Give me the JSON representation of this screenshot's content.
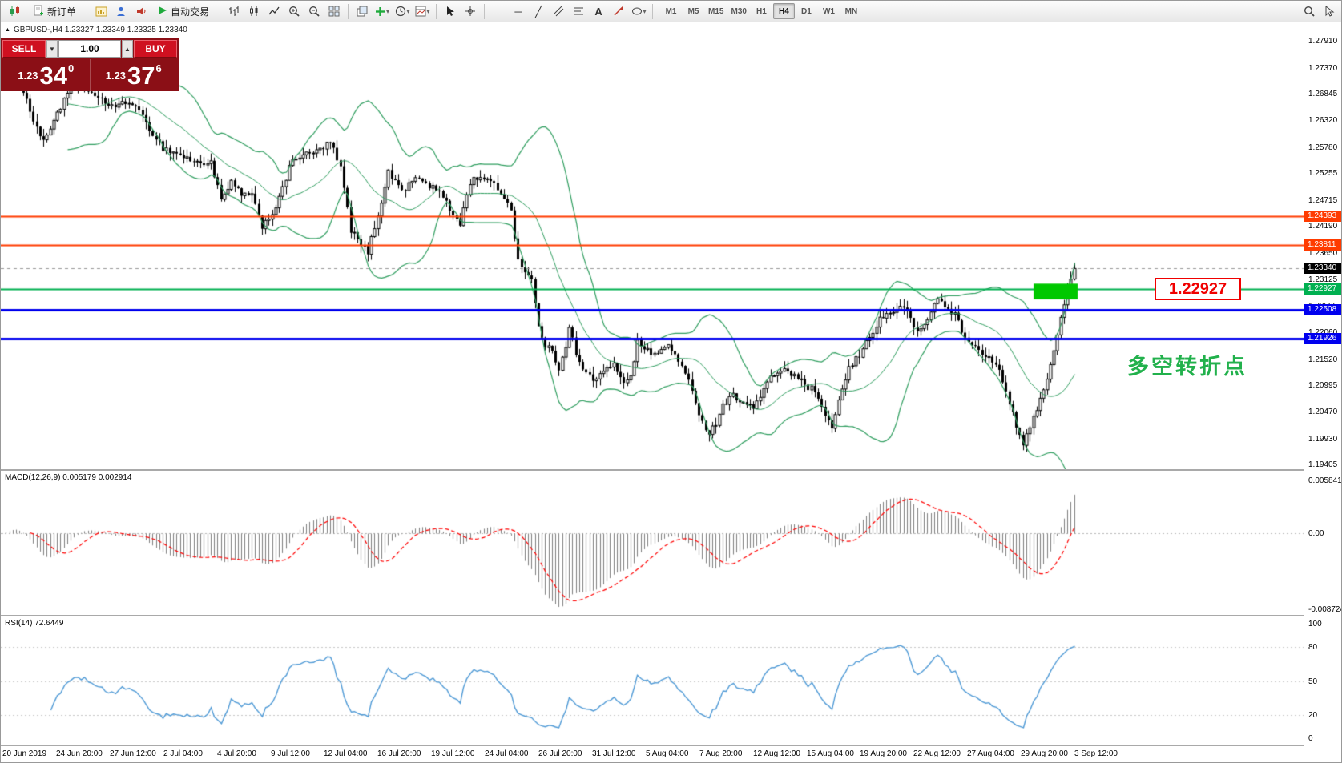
{
  "toolbar": {
    "new_order_label": "新订单",
    "autotrading_label": "自动交易",
    "timeframes": [
      "M1",
      "M5",
      "M15",
      "M30",
      "H1",
      "H4",
      "D1",
      "W1",
      "MN"
    ],
    "active_timeframe": "H4"
  },
  "chart": {
    "header": "GBPUSD-,H4  1.23327 1.23349 1.23325 1.23340",
    "trade_panel": {
      "sell_label": "SELL",
      "buy_label": "BUY",
      "volume": "1.00",
      "sell_price_small": "1.23",
      "sell_price_big": "34",
      "sell_price_sup": "0",
      "buy_price_small": "1.23",
      "buy_price_big": "37",
      "buy_price_sup": "6"
    },
    "price_ticks": [
      "1.27910",
      "1.27370",
      "1.26845",
      "1.26320",
      "1.25780",
      "1.25255",
      "1.24715",
      "1.24190",
      "1.23650",
      "1.23125",
      "1.22585",
      "1.22060",
      "1.21520",
      "1.20995",
      "1.20470",
      "1.19930",
      "1.19405"
    ],
    "levels": [
      {
        "price": 1.24393,
        "label": "1.24393",
        "color": "#ff3b00",
        "width": 2
      },
      {
        "price": 1.23811,
        "label": "1.23811",
        "color": "#ff3b00",
        "width": 2
      },
      {
        "price": 1.22927,
        "label": "1.22927",
        "color": "#00b050",
        "width": 2
      },
      {
        "price": 1.22508,
        "label": "1.22508",
        "color": "#0000ee",
        "width": 3
      },
      {
        "price": 1.21926,
        "label": "1.21926",
        "color": "#0000ee",
        "width": 3
      }
    ],
    "current_price": {
      "label": "1.23340",
      "price": 1.2334
    },
    "annotations": {
      "level_label": "1.22927",
      "cn_note": "多空转折点",
      "green_box": {
        "bar_start": 302,
        "bar_end": 315,
        "price_top": 1.23035,
        "price_bottom": 1.2272,
        "color": "#00c800"
      }
    },
    "bars": 315,
    "last_close": 1.2334,
    "bollinger": {
      "period": 20,
      "dev": 2,
      "color": "#2f9e5f"
    },
    "price_path": [
      [
        0,
        1.2715
      ],
      [
        4,
        1.2732
      ],
      [
        8,
        1.265
      ],
      [
        12,
        1.2586
      ],
      [
        16,
        1.2648
      ],
      [
        20,
        1.2692
      ],
      [
        24,
        1.27
      ],
      [
        28,
        1.2672
      ],
      [
        33,
        1.266
      ],
      [
        38,
        1.2668
      ],
      [
        42,
        1.2625
      ],
      [
        47,
        1.2576
      ],
      [
        52,
        1.2562
      ],
      [
        57,
        1.2545
      ],
      [
        61,
        1.2548
      ],
      [
        64,
        1.247
      ],
      [
        67,
        1.2505
      ],
      [
        70,
        1.2484
      ],
      [
        73,
        1.2478
      ],
      [
        76,
        1.242
      ],
      [
        79,
        1.2445
      ],
      [
        82,
        1.2492
      ],
      [
        85,
        1.2556
      ],
      [
        89,
        1.2562
      ],
      [
        93,
        1.2572
      ],
      [
        96,
        1.2588
      ],
      [
        99,
        1.2535
      ],
      [
        102,
        1.2412
      ],
      [
        105,
        1.238
      ],
      [
        107,
        1.2368
      ],
      [
        110,
        1.2442
      ],
      [
        113,
        1.2528
      ],
      [
        115,
        1.2508
      ],
      [
        118,
        1.2492
      ],
      [
        121,
        1.2518
      ],
      [
        125,
        1.25
      ],
      [
        128,
        1.2488
      ],
      [
        131,
        1.2452
      ],
      [
        134,
        1.2425
      ],
      [
        137,
        1.2508
      ],
      [
        140,
        1.252
      ],
      [
        143,
        1.2506
      ],
      [
        146,
        1.2488
      ],
      [
        149,
        1.2452
      ],
      [
        151,
        1.235
      ],
      [
        153,
        1.233
      ],
      [
        155,
        1.231
      ],
      [
        157,
        1.2215
      ],
      [
        159,
        1.218
      ],
      [
        161,
        1.2165
      ],
      [
        163,
        1.2135
      ],
      [
        165,
        1.218
      ],
      [
        166,
        1.2222
      ],
      [
        168,
        1.216
      ],
      [
        170,
        1.213
      ],
      [
        173,
        1.2112
      ],
      [
        176,
        1.2125
      ],
      [
        179,
        1.214
      ],
      [
        182,
        1.2108
      ],
      [
        184,
        1.212
      ],
      [
        186,
        1.2185
      ],
      [
        189,
        1.2168
      ],
      [
        192,
        1.2162
      ],
      [
        195,
        1.218
      ],
      [
        198,
        1.2152
      ],
      [
        201,
        1.2105
      ],
      [
        203,
        1.2062
      ],
      [
        205,
        1.203
      ],
      [
        207,
        1.2002
      ],
      [
        209,
        1.2025
      ],
      [
        211,
        1.2062
      ],
      [
        214,
        1.2078
      ],
      [
        217,
        1.2068
      ],
      [
        220,
        1.2052
      ],
      [
        223,
        1.2092
      ],
      [
        226,
        1.2122
      ],
      [
        229,
        1.2132
      ],
      [
        232,
        1.2118
      ],
      [
        235,
        1.21
      ],
      [
        238,
        1.2088
      ],
      [
        241,
        1.2032
      ],
      [
        243,
        1.2018
      ],
      [
        245,
        1.2068
      ],
      [
        248,
        1.2132
      ],
      [
        251,
        1.216
      ],
      [
        254,
        1.2198
      ],
      [
        257,
        1.2232
      ],
      [
        260,
        1.2245
      ],
      [
        263,
        1.2258
      ],
      [
        266,
        1.2238
      ],
      [
        268,
        1.2202
      ],
      [
        270,
        1.2218
      ],
      [
        272,
        1.2248
      ],
      [
        274,
        1.2275
      ],
      [
        276,
        1.2258
      ],
      [
        279,
        1.2242
      ],
      [
        282,
        1.2192
      ],
      [
        285,
        1.2175
      ],
      [
        288,
        1.2162
      ],
      [
        291,
        1.2138
      ],
      [
        293,
        1.2112
      ],
      [
        295,
        1.206
      ],
      [
        297,
        1.202
      ],
      [
        299,
        1.1978
      ],
      [
        301,
        1.2015
      ],
      [
        303,
        1.2055
      ],
      [
        305,
        1.2092
      ],
      [
        307,
        1.2142
      ],
      [
        309,
        1.2198
      ],
      [
        311,
        1.2262
      ],
      [
        313,
        1.2318
      ],
      [
        314,
        1.2334
      ]
    ]
  },
  "macd": {
    "label": "MACD(12,26,9) 0.005179 0.002914",
    "scale_top": "0.005841",
    "scale_zero": "0.00",
    "scale_bottom": "-0.008724"
  },
  "rsi": {
    "label": "RSI(14) 72.6449",
    "scale": [
      "100",
      "80",
      "50",
      "20",
      "0"
    ],
    "levels": [
      80,
      50,
      20
    ]
  },
  "dates": [
    "20 Jun 2019",
    "24 Jun 20:00",
    "27 Jun 12:00",
    "2 Jul 04:00",
    "4 Jul 20:00",
    "9 Jul 12:00",
    "12 Jul 04:00",
    "16 Jul 20:00",
    "19 Jul 12:00",
    "24 Jul 04:00",
    "26 Jul 20:00",
    "31 Jul 12:00",
    "5 Aug 04:00",
    "7 Aug 20:00",
    "12 Aug 12:00",
    "15 Aug 04:00",
    "19 Aug 20:00",
    "22 Aug 12:00",
    "27 Aug 04:00",
    "29 Aug 20:00",
    "3 Sep 12:00"
  ],
  "colors": {
    "up_candle": "#ffffff",
    "down_candle": "#000000",
    "candle_outline": "#000000",
    "macd_hist": "#808080",
    "macd_signal": "#ff0000",
    "rsi_line": "#4f9ad6",
    "grid": "#c8c8c8"
  }
}
